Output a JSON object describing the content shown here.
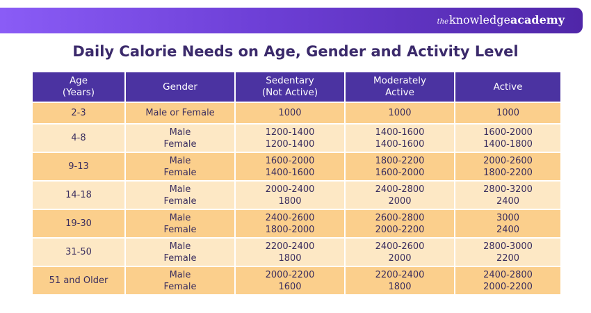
{
  "brand": {
    "prefix": "the",
    "name_regular": "knowledge",
    "name_bold": "academy"
  },
  "title": "Daily Calorie Needs on Age, Gender and Activity Level",
  "table": {
    "headers": [
      "Age\n(Years)",
      "Gender",
      "Sedentary\n(Not Active)",
      "Moderately\nActive",
      "Active"
    ],
    "rows": [
      [
        "2-3",
        "Male or Female",
        "1000",
        "1000",
        "1000"
      ],
      [
        "4-8",
        "Male\nFemale",
        "1200-1400\n1200-1400",
        "1400-1600\n1400-1600",
        "1600-2000\n1400-1800"
      ],
      [
        "9-13",
        "Male\nFemale",
        "1600-2000\n1400-1600",
        "1800-2200\n1600-2000",
        "2000-2600\n1800-2200"
      ],
      [
        "14-18",
        "Male\nFemale",
        "2000-2400\n1800",
        "2400-2800\n2000",
        "2800-3200\n2400"
      ],
      [
        "19-30",
        "Male\nFemale",
        "2400-2600\n1800-2000",
        "2600-2800\n2000-2200",
        "3000\n2400"
      ],
      [
        "31-50",
        "Male\nFemale",
        "2200-2400\n1800",
        "2400-2600\n2000",
        "2800-3000\n2200"
      ],
      [
        "51 and Older",
        "Male\nFemale",
        "2000-2200\n1600",
        "2200-2400\n1800",
        "2400-2800\n2000-2200"
      ]
    ]
  },
  "colors": {
    "header_bg": "#4b33a1",
    "row_dark": "#fbcf8c",
    "row_light": "#fde8c5",
    "title": "#3b2a6b",
    "banner_start": "#8a5cf6",
    "banner_end": "#4f26a8"
  }
}
